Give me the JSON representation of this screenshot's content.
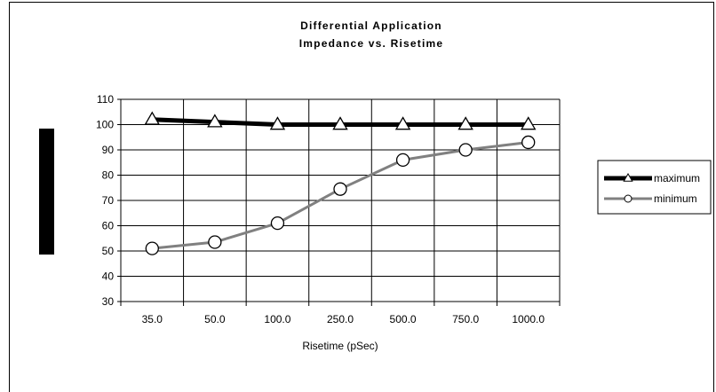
{
  "chart_data": {
    "type": "line",
    "title": "Differential Application",
    "subtitle": "Impedance vs. Risetime",
    "xlabel": "Risetime (pSec)",
    "ylabel": "",
    "categories": [
      "35.0",
      "50.0",
      "100.0",
      "250.0",
      "500.0",
      "750.0",
      "1000.0"
    ],
    "ylim": [
      30,
      110
    ],
    "yticks": [
      30,
      40,
      50,
      60,
      70,
      80,
      90,
      100,
      110
    ],
    "grid": true,
    "legend_position": "right",
    "series": [
      {
        "name": "maximum",
        "values": [
          102,
          101,
          100,
          100,
          100,
          100,
          100
        ],
        "color": "#000000",
        "marker": "triangle"
      },
      {
        "name": "minimum",
        "values": [
          51,
          53.5,
          61,
          74.5,
          86,
          90,
          93
        ],
        "color": "#808080",
        "marker": "circle"
      }
    ]
  },
  "colors": {
    "left_bar": "#000000",
    "grid": "#000000",
    "background": "#ffffff"
  }
}
